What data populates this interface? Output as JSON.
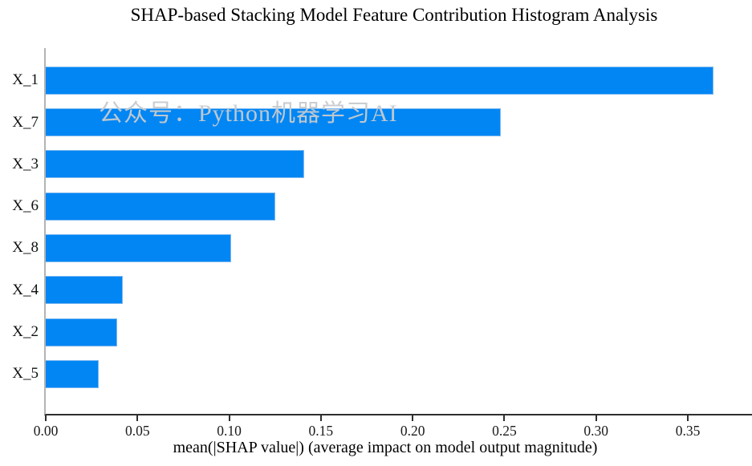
{
  "title": "SHAP-based Stacking Model Feature Contribution Histogram Analysis",
  "watermark": "公众号：Python机器学习AI",
  "chart_data": {
    "type": "bar",
    "orientation": "horizontal",
    "title": "SHAP-based Stacking Model Feature Contribution Histogram Analysis",
    "xlabel": "mean(|SHAP value|) (average impact on model output magnitude)",
    "ylabel": "",
    "categories": [
      "X_1",
      "X_7",
      "X_3",
      "X_6",
      "X_8",
      "X_4",
      "X_2",
      "X_5"
    ],
    "values": [
      0.364,
      0.248,
      0.141,
      0.125,
      0.101,
      0.042,
      0.039,
      0.029
    ],
    "xlim": [
      0,
      0.385
    ],
    "xticks": [
      0.0,
      0.05,
      0.1,
      0.15,
      0.2,
      0.25,
      0.3,
      0.35
    ],
    "xtick_labels": [
      "0.00",
      "0.05",
      "0.10",
      "0.15",
      "0.20",
      "0.25",
      "0.30",
      "0.35"
    ],
    "grid": false,
    "legend": null,
    "bar_color": "#0186f4",
    "bar_edge_color": "#7db9f0",
    "left_spine_color": "#b3b3b3",
    "bottom_spine_color": "#2e2e2e",
    "annotations": [
      "公众号：Python机器学习AI"
    ]
  }
}
